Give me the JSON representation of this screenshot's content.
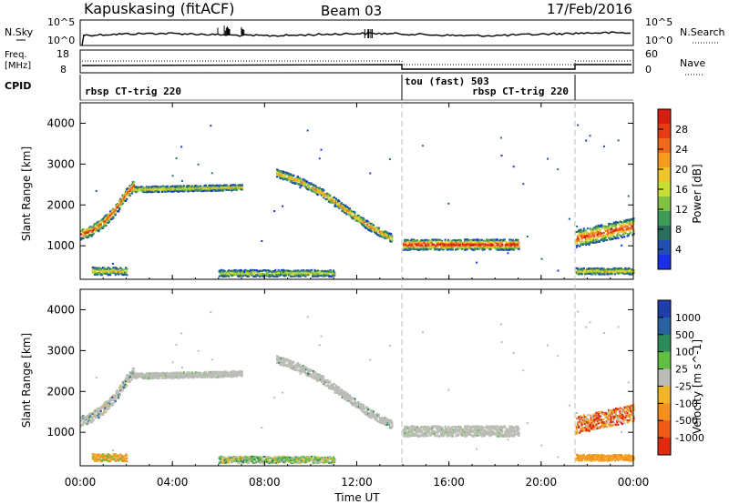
{
  "header": {
    "station": "Kapuskasing (fitACF)",
    "beam": "Beam 03",
    "date": "17/Feb/2016"
  },
  "panels": {
    "nsky": {
      "left_label": "N.Sky",
      "right_label": "N.Search",
      "left_ticks": [
        "10^5",
        "10^0"
      ],
      "right_ticks": [
        "10^5",
        "10^0"
      ]
    },
    "freq": {
      "left_label_1": "Freq.",
      "left_label_2": "[MHz]",
      "right_label": "Nave",
      "left_ticks": [
        "18",
        "8"
      ],
      "right_ticks": [
        "60",
        "0"
      ]
    },
    "cpid": {
      "label": "CPID",
      "segments": [
        "rbsp CT-trig 220",
        "tou (fast) 503",
        "rbsp CT-trig 220"
      ]
    }
  },
  "axes": {
    "x_ticks": [
      "00:00",
      "04:00",
      "08:00",
      "12:00",
      "16:00",
      "20:00",
      "00:00"
    ],
    "x_label": "Time UT",
    "y_label": "Slant Range [km]",
    "y_ticks": [
      "1000",
      "2000",
      "3000",
      "4000"
    ]
  },
  "chart_data": [
    {
      "type": "heatmap",
      "title": "Power",
      "xlabel": "Time UT",
      "ylabel": "Slant Range [km]",
      "xlim": [
        0,
        24
      ],
      "ylim": [
        180,
        4500
      ],
      "colorbar": {
        "label": "Power [dB]",
        "ticks": [
          "4",
          "8",
          "12",
          "16",
          "20",
          "24",
          "28"
        ],
        "colors": [
          "#1a2fe6",
          "#1f4fb0",
          "#2a6e5e",
          "#3f9a55",
          "#7fc243",
          "#c9df35",
          "#f1c52a",
          "#f59b22",
          "#f06a1c",
          "#e73a16",
          "#d81e10"
        ]
      },
      "scatter_bands": [
        {
          "t": [
            0.0,
            0.5,
            1.0,
            1.5,
            2.0,
            2.3
          ],
          "r": [
            1300,
            1400,
            1600,
            1900,
            2300,
            2500
          ]
        },
        {
          "t": [
            2.3,
            7.0
          ],
          "r": [
            2400,
            2450
          ]
        },
        {
          "t": [
            8.5,
            9.5,
            10.5,
            11.5,
            12.5,
            13.5
          ],
          "r": [
            2800,
            2600,
            2300,
            1900,
            1500,
            1200
          ]
        },
        {
          "t": [
            14.0,
            19.0
          ],
          "r": [
            1050,
            1050
          ]
        },
        {
          "t": [
            21.5,
            24.0
          ],
          "r": [
            1200,
            1500
          ]
        },
        {
          "t": [
            0.5,
            2.0
          ],
          "r": [
            400,
            400
          ]
        },
        {
          "t": [
            6.0,
            11.0
          ],
          "r": [
            350,
            350
          ]
        },
        {
          "t": [
            21.5,
            24.0
          ],
          "r": [
            400,
            400
          ]
        }
      ]
    },
    {
      "type": "heatmap",
      "title": "Velocity",
      "xlabel": "Time UT",
      "ylabel": "Slant Range [km]",
      "xlim": [
        0,
        24
      ],
      "ylim": [
        180,
        4500
      ],
      "colorbar": {
        "label": "Velocity [m s^-1]",
        "ticks": [
          "1000",
          "500",
          "100",
          "25",
          "-25",
          "-100",
          "-500",
          "-1000"
        ],
        "colors": [
          "#1f3ea8",
          "#2a62a0",
          "#2f8a5a",
          "#61c043",
          "#bcbcb6",
          "#f0b52a",
          "#f3901f",
          "#ee5b18",
          "#e02a12"
        ]
      },
      "ground_scatter_color": "#bcbcb6"
    }
  ]
}
